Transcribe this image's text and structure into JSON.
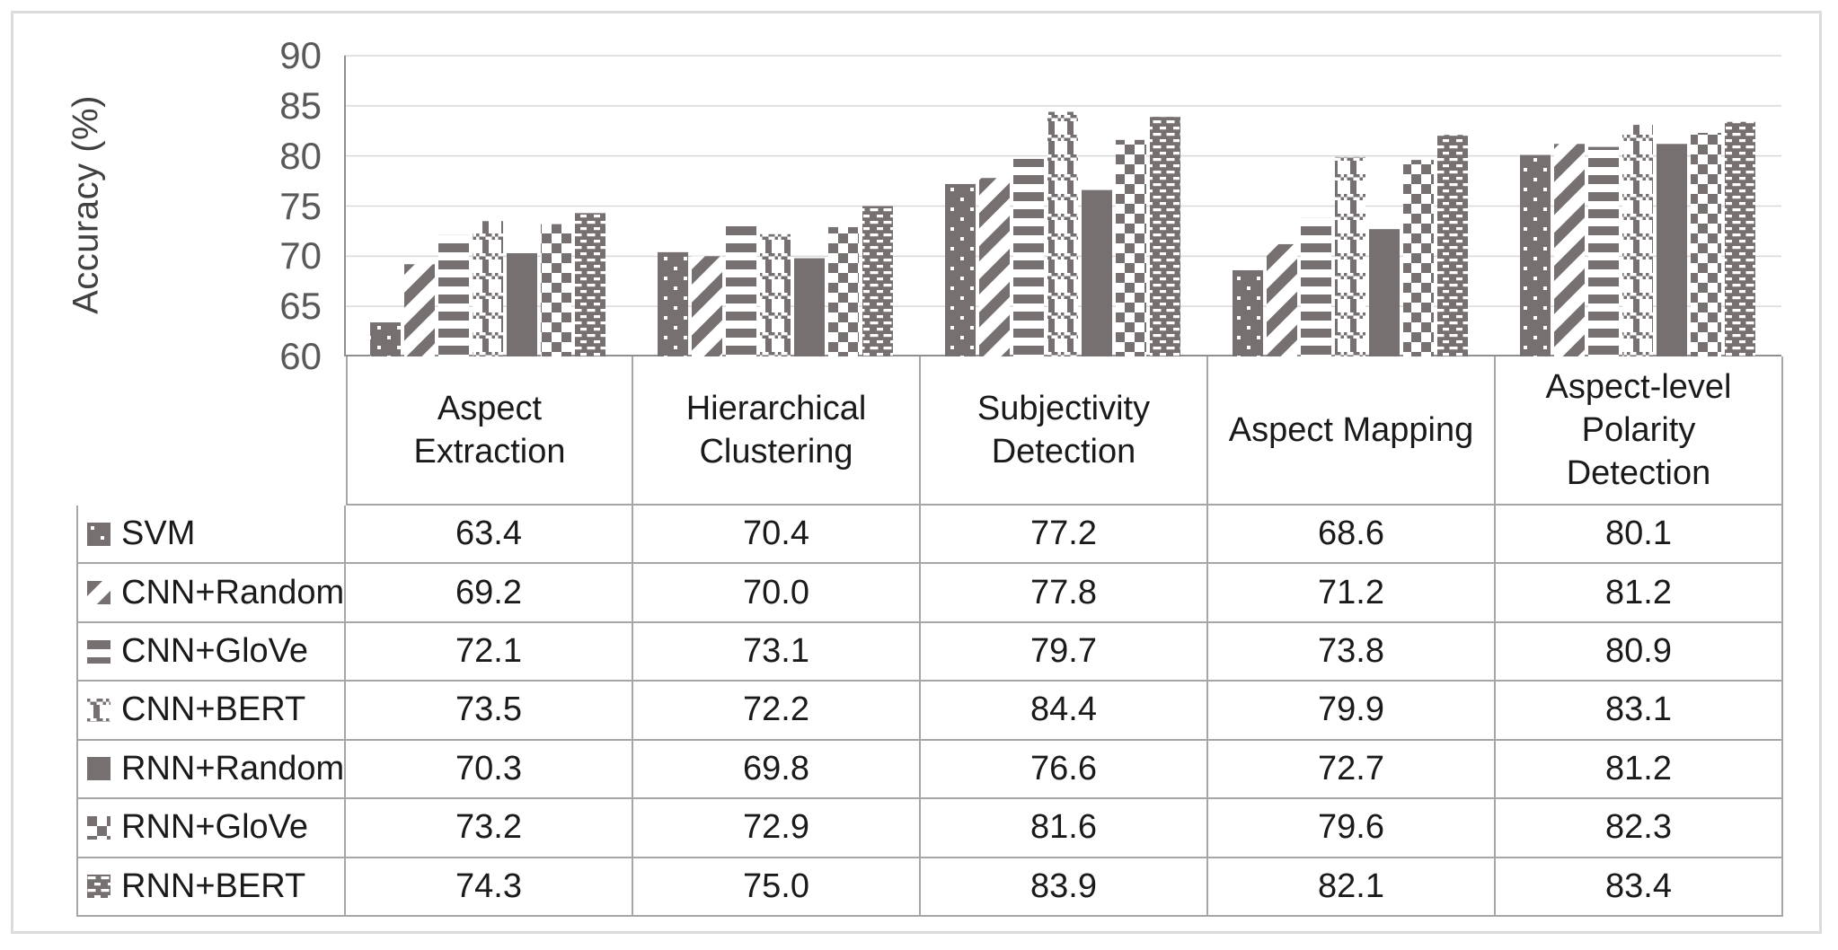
{
  "figure": {
    "y_axis_title": "Accuracy (%)"
  },
  "colors": {
    "bar_gray": "#767170",
    "gridline": "#d9d9d9",
    "axis_line": "#8f8f8f",
    "table_border": "#a6a6a6",
    "tick_text": "#595959",
    "table_text": "#1a1a1a",
    "outer_border": "#dcdcdc",
    "background": "#ffffff"
  },
  "chart_data": {
    "type": "bar",
    "title": "",
    "xlabel": "",
    "ylabel": "Accuracy (%)",
    "ylim": [
      60,
      90
    ],
    "ytick_step": 5,
    "yticks": [
      90,
      85,
      80,
      75,
      70,
      65,
      60
    ],
    "grid": true,
    "legend_position": "data-table-left-column",
    "categories": [
      "Aspect Extraction",
      "Hierarchical Clustering",
      "Subjectivity Detection",
      "Aspect Mapping",
      "Aspect-level Polarity Detection"
    ],
    "category_display_labels": [
      "Aspect\nExtraction",
      "Hierarchical\nClustering",
      "Subjectivity\nDetection",
      "Aspect Mapping",
      "Aspect-level\nPolarity\nDetection"
    ],
    "series": [
      {
        "name": "SVM",
        "pattern": "p-svm",
        "pattern_desc": "dark fill with sparse white dots",
        "values": [
          63.4,
          70.4,
          77.2,
          68.6,
          80.1
        ]
      },
      {
        "name": "CNN+Random",
        "pattern": "p-diag",
        "pattern_desc": "wide downward diagonal stripes",
        "values": [
          69.2,
          70.0,
          77.8,
          71.2,
          81.2
        ]
      },
      {
        "name": "CNN+GloVe",
        "pattern": "p-horiz",
        "pattern_desc": "horizontal stripes",
        "values": [
          72.1,
          73.1,
          79.7,
          73.8,
          80.9
        ]
      },
      {
        "name": "CNN+BERT",
        "pattern": "p-divot",
        "pattern_desc": "vertical stripe with checkered bands",
        "values": [
          73.5,
          72.2,
          84.4,
          79.9,
          83.1
        ]
      },
      {
        "name": "RNN+Random",
        "pattern": "p-solid",
        "pattern_desc": "solid gray",
        "values": [
          70.3,
          69.8,
          76.6,
          72.7,
          81.2
        ]
      },
      {
        "name": "RNN+GloVe",
        "pattern": "p-checker",
        "pattern_desc": "large checkerboard",
        "values": [
          73.2,
          72.9,
          81.6,
          79.6,
          82.3
        ]
      },
      {
        "name": "RNN+BERT",
        "pattern": "p-brick",
        "pattern_desc": "dark fill with white dash grid",
        "values": [
          74.3,
          75.0,
          83.9,
          82.1,
          83.4
        ]
      }
    ]
  }
}
